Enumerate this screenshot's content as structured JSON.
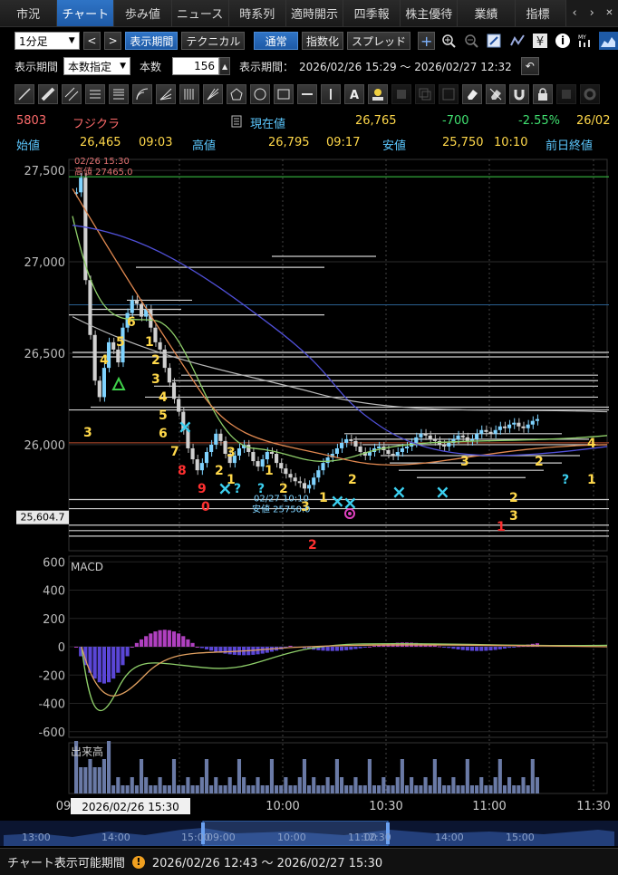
{
  "tabs": [
    "市況",
    "チャート",
    "歩み値",
    "ニュース",
    "時系列",
    "適時開示",
    "四季報",
    "株主優待",
    "業績",
    "指標"
  ],
  "toolbar": {
    "interval": "1分足",
    "display_period_btn": "表示期間",
    "technical_btn": "テクニカル",
    "normal_btn": "通常",
    "index_btn": "指数化",
    "spread_btn": "スプレッド"
  },
  "period": {
    "label": "表示期間",
    "mode": "本数指定",
    "count_label": "本数",
    "count": "156",
    "range_label": "表示期間：",
    "range": "2026/02/26 15:29 ～ 2026/02/27 12:32"
  },
  "stock": {
    "code": "5803",
    "name": "フジクラ",
    "current_label": "現在値",
    "current": "26,765",
    "change": "-700",
    "change_pct": "-2.55%",
    "date": "26/02",
    "open_label": "始値",
    "open": "26,465",
    "open_time": "09:03",
    "high_label": "高値",
    "high": "26,795",
    "high_time": "09:17",
    "low_label": "安値",
    "low": "25,750",
    "low_time": "10:10",
    "prev_close_label": "前日終値"
  },
  "chart_data": {
    "type": "candlestick",
    "price_axis": {
      "ticks": [
        "27,500",
        "27,000",
        "26,500",
        "26,000"
      ],
      "marker": "25,604.7"
    },
    "macd": {
      "label": "MACD",
      "ticks": [
        "600",
        "400",
        "200",
        "0",
        "-200",
        "-400",
        "-600"
      ]
    },
    "volume": {
      "label": "出来高"
    },
    "time_ticks": [
      "09",
      "10:00",
      "10:30",
      "11:00",
      "11:30"
    ],
    "cursor_time": "2026/02/26 15:30",
    "high_annotation": {
      "time": "02/26 15:30",
      "label": "高値 27465.0"
    },
    "low_annotation": {
      "time": "02/27 10:10",
      "label": "安値 25750.0"
    },
    "nav_ticks": [
      "13:00",
      "14:00",
      "15:00",
      "09:00",
      "10:00",
      "11:00",
      "12:30",
      "14:00",
      "15:00"
    ]
  },
  "footer": {
    "label": "チャート表示可能期間",
    "range": "2026/02/26 12:43 ～ 2026/02/27 15:30"
  },
  "colors": {
    "active_tab": "#2f74c6",
    "code": "#ff6b6b",
    "label": "#5cc8ff",
    "value": "#ffd84a",
    "negative": "#40e070",
    "up_candle": "#7fd3ff",
    "down_candle": "#c8c8c8",
    "macd_hist_pos": "#b040c0",
    "macd_hist_neg": "#5a46d6"
  }
}
